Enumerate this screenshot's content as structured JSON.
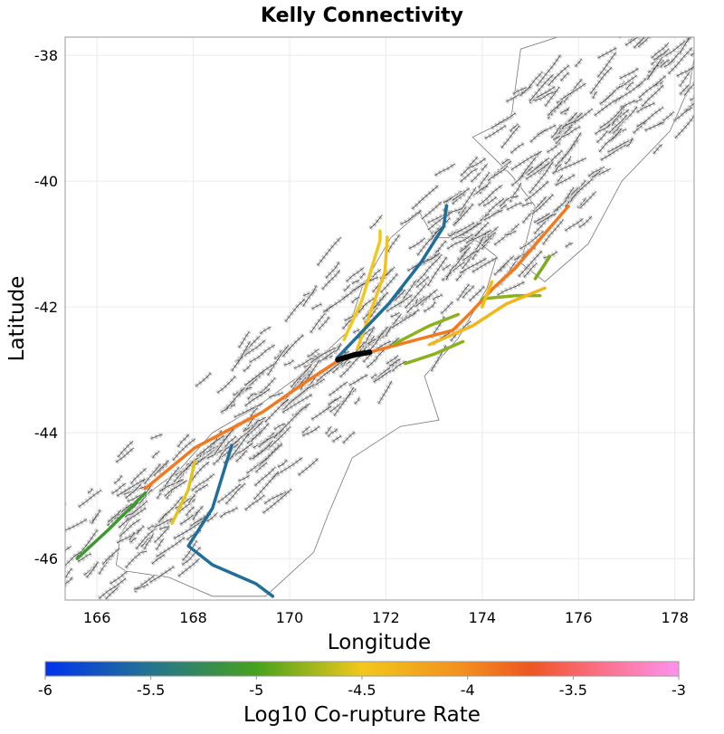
{
  "title": "Kelly Connectivity",
  "x_axis": {
    "label": "Longitude",
    "ticks": [
      "166",
      "168",
      "170",
      "172",
      "174",
      "176",
      "178"
    ],
    "tick_values": [
      166,
      168,
      170,
      172,
      174,
      176,
      178
    ],
    "range": [
      165.34,
      178.4
    ]
  },
  "y_axis": {
    "label": "Latitude",
    "ticks": [
      "-38",
      "-40",
      "-42",
      "-44",
      "-46"
    ],
    "tick_values": [
      -38,
      -40,
      -42,
      -44,
      -46
    ],
    "range": [
      -46.66,
      -37.71
    ]
  },
  "colorbar": {
    "label": "Log10 Co-rupture Rate",
    "ticks": [
      "-6",
      "-5.5",
      "-5",
      "-4.5",
      "-4",
      "-3.5",
      "-3"
    ],
    "tick_values": [
      -6,
      -5.5,
      -5,
      -4.5,
      -4,
      -3.5,
      -3
    ],
    "range": [
      -6,
      -3
    ],
    "stops": [
      {
        "v": -6,
        "color": "#0033ee"
      },
      {
        "v": -5.5,
        "color": "#25748f"
      },
      {
        "v": -5,
        "color": "#46a21c"
      },
      {
        "v": -4.5,
        "color": "#f2c81c"
      },
      {
        "v": -4,
        "color": "#f38c1e"
      },
      {
        "v": -3.7,
        "color": "#ee5522"
      },
      {
        "v": -3.5,
        "color": "#f86462"
      },
      {
        "v": -3,
        "color": "#ff92f0"
      }
    ]
  },
  "map_data": {
    "selected_section": {
      "name": "Kelly",
      "color": "#000000",
      "coords": [
        [
          171.0,
          -42.84
        ],
        [
          171.35,
          -42.76
        ],
        [
          171.66,
          -42.72
        ]
      ]
    },
    "ruptures": [
      {
        "value": -3.9,
        "coords": [
          [
            167.0,
            -44.89
          ],
          [
            168.03,
            -44.24
          ],
          [
            169.44,
            -43.67
          ],
          [
            170.38,
            -43.17
          ],
          [
            171.0,
            -42.86
          ]
        ]
      },
      {
        "value": -3.9,
        "coords": [
          [
            171.66,
            -42.72
          ],
          [
            172.64,
            -42.52
          ],
          [
            173.39,
            -42.37
          ],
          [
            173.76,
            -42.09
          ],
          [
            174.23,
            -41.7
          ],
          [
            174.7,
            -41.37
          ],
          [
            175.27,
            -40.86
          ],
          [
            175.79,
            -40.4
          ]
        ]
      },
      {
        "value": -5.1,
        "coords": [
          [
            165.59,
            -46.0
          ],
          [
            166.24,
            -45.54
          ],
          [
            167.0,
            -44.96
          ]
        ]
      },
      {
        "value": -4.55,
        "coords": [
          [
            167.56,
            -45.44
          ],
          [
            167.9,
            -44.9
          ],
          [
            168.03,
            -44.46
          ]
        ]
      },
      {
        "value": -4.5,
        "coords": [
          [
            171.13,
            -42.52
          ],
          [
            171.5,
            -41.9
          ],
          [
            171.88,
            -40.94
          ],
          [
            171.88,
            -40.79
          ]
        ]
      },
      {
        "value": -4.45,
        "coords": [
          [
            171.41,
            -42.66
          ],
          [
            171.98,
            -41.44
          ],
          [
            172.03,
            -40.89
          ]
        ]
      },
      {
        "value": -5.55,
        "coords": [
          [
            171.0,
            -42.8
          ],
          [
            172.07,
            -41.94
          ],
          [
            172.73,
            -41.29
          ],
          [
            173.2,
            -40.72
          ],
          [
            173.26,
            -40.39
          ]
        ]
      },
      {
        "value": -5.55,
        "coords": [
          [
            168.8,
            -44.2
          ],
          [
            168.4,
            -45.2
          ],
          [
            167.9,
            -45.8
          ],
          [
            168.4,
            -46.1
          ],
          [
            169.3,
            -46.4
          ],
          [
            169.65,
            -46.6
          ]
        ]
      },
      {
        "value": -4.8,
        "coords": [
          [
            172.17,
            -42.59
          ],
          [
            172.9,
            -42.3
          ],
          [
            173.5,
            -42.12
          ]
        ]
      },
      {
        "value": -4.8,
        "coords": [
          [
            174.0,
            -41.87
          ],
          [
            174.7,
            -41.82
          ],
          [
            175.2,
            -41.82
          ]
        ]
      },
      {
        "value": -4.8,
        "coords": [
          [
            172.4,
            -42.9
          ],
          [
            173.0,
            -42.75
          ],
          [
            173.6,
            -42.55
          ]
        ]
      },
      {
        "value": -4.85,
        "coords": [
          [
            175.1,
            -41.55
          ],
          [
            175.4,
            -41.2
          ]
        ]
      },
      {
        "value": -4.35,
        "coords": [
          [
            172.9,
            -42.6
          ],
          [
            173.8,
            -42.3
          ],
          [
            174.5,
            -41.95
          ],
          [
            175.3,
            -41.7
          ]
        ]
      },
      {
        "value": -4.4,
        "coords": [
          [
            174.0,
            -42.0
          ],
          [
            174.2,
            -41.6
          ]
        ]
      }
    ]
  }
}
